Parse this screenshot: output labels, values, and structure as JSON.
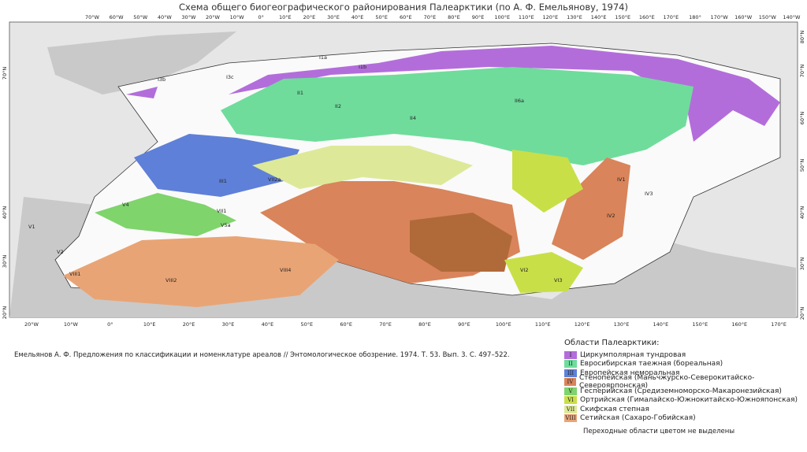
{
  "header": {
    "title": "Схема общего биогеографического районирования Палеарктики (по А. Ф. Емельянову, 1974)"
  },
  "citation": "Емельянов А. Ф. Предложения по классификации и номенклатуре ареалов // Энтомологическое обозрение. 1974. Т. 53. Вып. 3. С. 497–522.",
  "legend": {
    "title": "Области Палеарктики:",
    "items": [
      {
        "numeral": "I",
        "label": "Циркумполярная тундровая",
        "color": "#b36ddb"
      },
      {
        "numeral": "II",
        "label": "Евросибирская таежная (бореальная)",
        "color": "#6fdc9c"
      },
      {
        "numeral": "III",
        "label": "Европейская неморальная",
        "color": "#5e80d8"
      },
      {
        "numeral": "IV",
        "label": "Стенопейская (Маньчжурско-Северокитайско-Североярпонская)",
        "color": "#d9845a"
      },
      {
        "numeral": "V",
        "label": "Гесперийская (Средиземноморско-Макаронезийская)",
        "color": "#7fd46c"
      },
      {
        "numeral": "VI",
        "label": "Ортрийская (Гималайско-Южнокитайско-Южнояпонская)",
        "color": "#c9df48"
      },
      {
        "numeral": "VII",
        "label": "Скифская степная",
        "color": "#dde998"
      },
      {
        "numeral": "VIII",
        "label": "Сетийская (Сахаро-Гобийская)",
        "color": "#e9a475"
      }
    ],
    "note": "Переходные области цветом не выделены"
  },
  "map": {
    "top_lon": [
      "70°W",
      "60°W",
      "50°W",
      "40°W",
      "30°W",
      "20°W",
      "10°W",
      "0°",
      "10°E",
      "20°E",
      "30°E",
      "40°E",
      "50°E",
      "60°E",
      "70°E",
      "80°E",
      "90°E",
      "100°E",
      "110°E",
      "120°E",
      "130°E",
      "140°E",
      "150°E",
      "160°E",
      "170°E",
      "180°",
      "170°W",
      "160°W",
      "150°W",
      "140°W"
    ],
    "bottom_lon": [
      "20°W",
      "10°W",
      "0°",
      "10°E",
      "20°E",
      "30°E",
      "40°E",
      "50°E",
      "60°E",
      "70°E",
      "80°E",
      "90°E",
      "100°E",
      "110°E",
      "120°E",
      "130°E",
      "140°E",
      "150°E",
      "160°E",
      "170°E"
    ],
    "right_lat": [
      "80°N",
      "70°N",
      "60°N",
      "50°N",
      "40°N",
      "30°N",
      "20°N"
    ],
    "left_lat": [
      "70°N",
      "40°N",
      "30°N",
      "20°N"
    ],
    "regions": [
      "I1a",
      "I1b",
      "I3b",
      "I3c",
      "II1",
      "II2",
      "II4",
      "II6a",
      "III1",
      "IV1",
      "IV2",
      "IV3",
      "V1",
      "V2",
      "V4",
      "V5a",
      "VI2",
      "VI3",
      "VII2a",
      "VII1",
      "VIII1",
      "VIII2",
      "VIII4"
    ]
  }
}
